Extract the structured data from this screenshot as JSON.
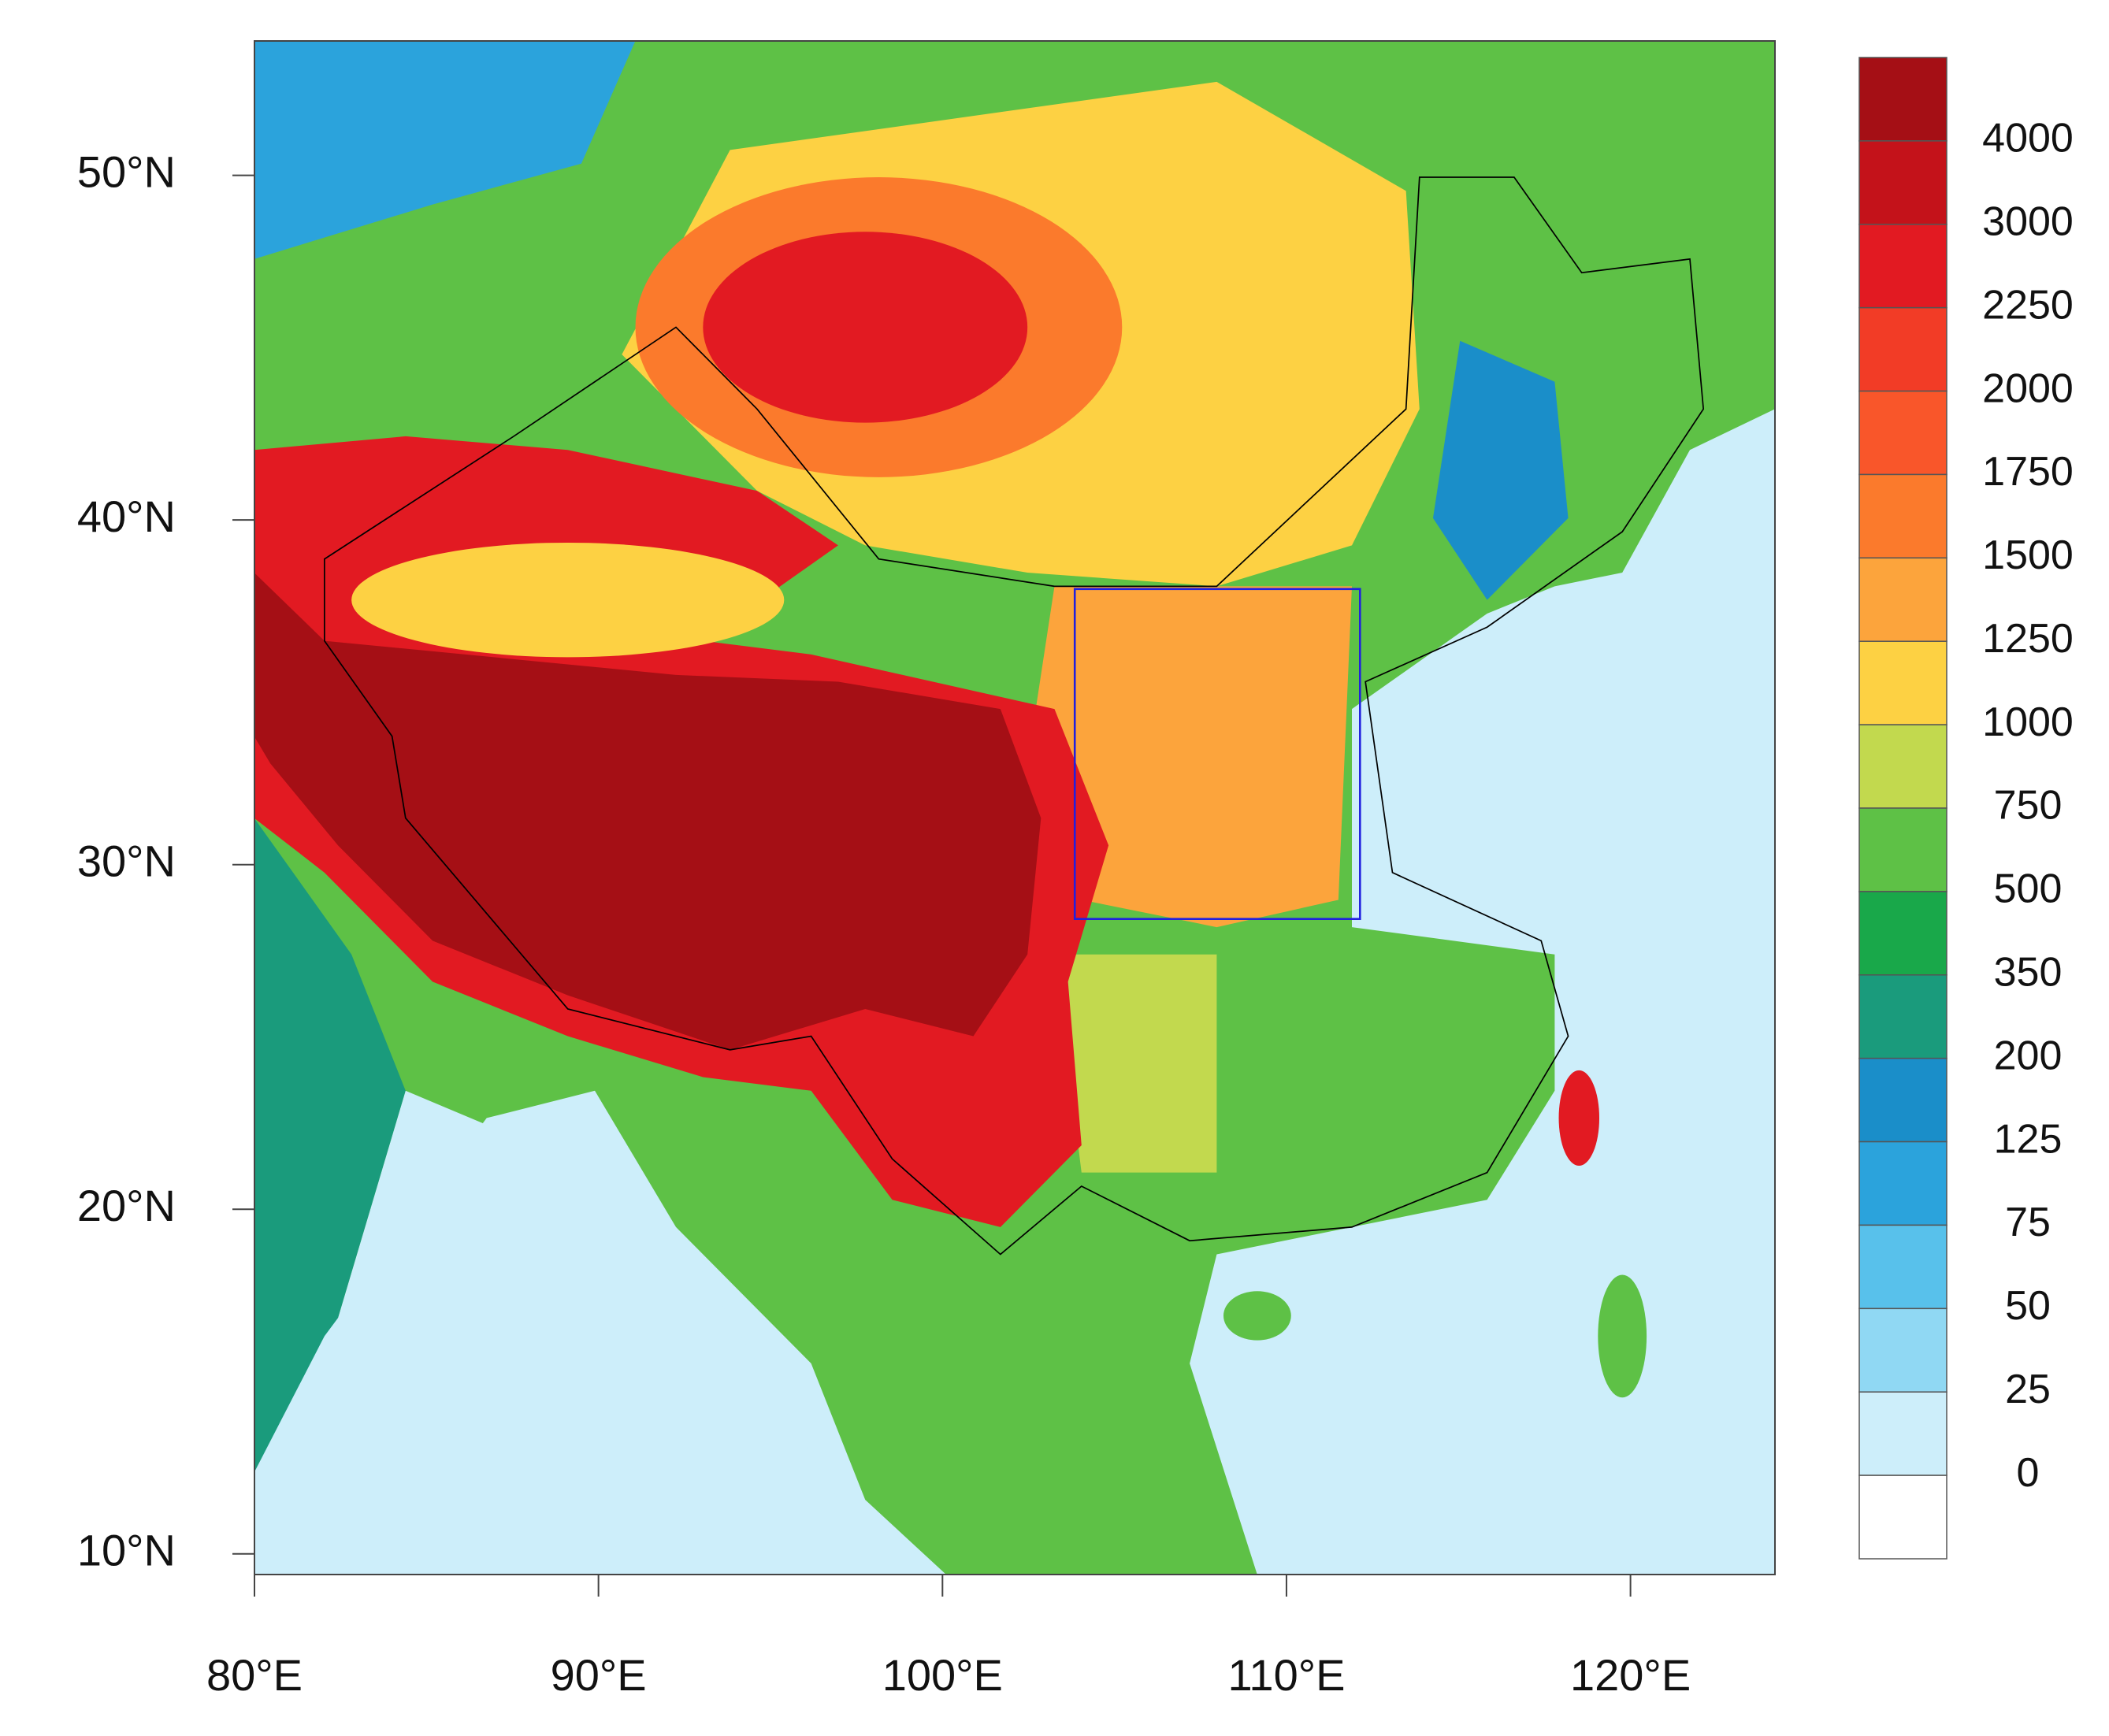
{
  "chart_data": {
    "type": "map",
    "xlim": [
      80,
      124.2
    ],
    "ylim": [
      9.4,
      53.9
    ],
    "xticks": [
      {
        "value": 80,
        "label": "80°E"
      },
      {
        "value": 90,
        "label": "90°E"
      },
      {
        "value": 100,
        "label": "100°E"
      },
      {
        "value": 110,
        "label": "110°E"
      },
      {
        "value": 120,
        "label": "120°E"
      }
    ],
    "yticks": [
      {
        "value": 10,
        "label": "10°N"
      },
      {
        "value": 20,
        "label": "20°N"
      },
      {
        "value": 30,
        "label": "30°N"
      },
      {
        "value": 40,
        "label": "40°N"
      },
      {
        "value": 50,
        "label": "50°N"
      }
    ],
    "colorbar": {
      "levels": [
        4000,
        3000,
        2250,
        2000,
        1750,
        1500,
        1250,
        1000,
        750,
        500,
        350,
        200,
        125,
        75,
        50,
        25,
        0
      ],
      "colors": [
        "#a50f15",
        "#c4121a",
        "#e21a22",
        "#f23c26",
        "#f9562a",
        "#fb7a2c",
        "#fca43c",
        "#fdd143",
        "#c2d94e",
        "#5ec146",
        "#19a84a",
        "#1a9b7c",
        "#1a8ec9",
        "#2ba3dc",
        "#58c1eb",
        "#90d8f3",
        "#cdeefa",
        "#ffffff"
      ]
    }
  }
}
